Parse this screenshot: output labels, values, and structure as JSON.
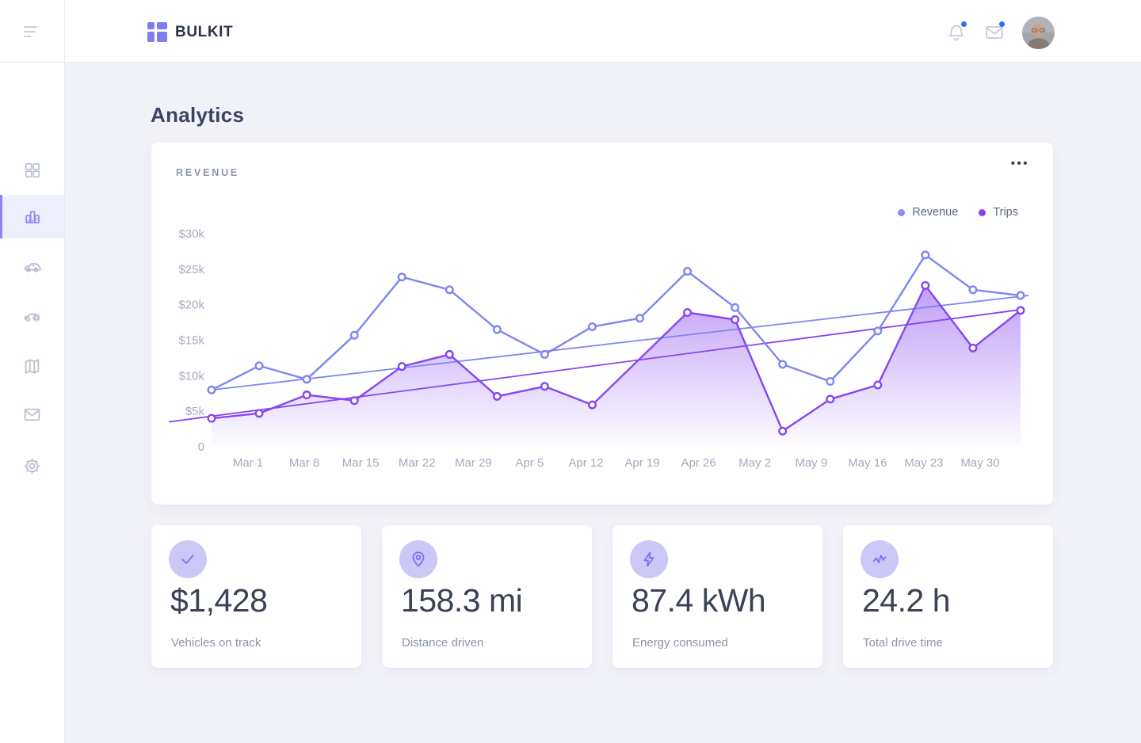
{
  "colors": {
    "accent": "#7d7cf1",
    "sidebar_active_bar": "#8b85f2",
    "revenue_line": "#7e87f0",
    "trips_line": "#8746f2",
    "trips_area_fill": "#8746f2",
    "notification_dot": "#2f6bf6",
    "badge_bg": "#cbc7f7",
    "badge_icon": "#7b74ee"
  },
  "header": {
    "brand": "BULKIT",
    "bell_icon": "bell-icon",
    "bell_has_badge": true,
    "mail_icon": "mail-icon",
    "mail_has_badge": true,
    "avatar": "user-avatar-photo"
  },
  "sidebar": {
    "items": [
      {
        "icon": "dashboard-grid-icon",
        "active": false
      },
      {
        "icon": "bar-chart-icon",
        "active": true
      },
      {
        "icon": "car-icon",
        "active": false
      },
      {
        "icon": "car-service-icon",
        "active": false
      },
      {
        "icon": "map-icon",
        "active": false
      },
      {
        "icon": "mail-icon",
        "active": false
      },
      {
        "icon": "settings-gear-icon",
        "active": false
      }
    ]
  },
  "page": {
    "title": "Analytics"
  },
  "revenue_card": {
    "title": "REVENUE",
    "menu_label": "•••"
  },
  "chart_data": {
    "type": "line",
    "title": "REVENUE",
    "grid": "off",
    "legend_position": "top-right",
    "legend": [
      {
        "label": "Revenue",
        "dot_color": "#8a8ff0"
      },
      {
        "label": "Trips",
        "dot_color": "#8e3ef2"
      }
    ],
    "y_ticks": [
      {
        "label": "$30k",
        "value": 30
      },
      {
        "label": "$25k",
        "value": 25
      },
      {
        "label": "$20k",
        "value": 20
      },
      {
        "label": "$15k",
        "value": 15
      },
      {
        "label": "$10k",
        "value": 10
      },
      {
        "label": "$5k",
        "value": 5
      },
      {
        "label": "0",
        "value": 0
      }
    ],
    "ylim": [
      0,
      30
    ],
    "y_unit": "$k",
    "x_labels": [
      "Mar 1",
      "Mar 8",
      "Mar 15",
      "Mar 22",
      "Mar 29",
      "Apr 5",
      "Apr 12",
      "Apr 19",
      "Apr 26",
      "May 2",
      "May 9",
      "May 16",
      "May 23",
      "May 30"
    ],
    "series": [
      {
        "name": "Revenue",
        "color": "#7e87f0",
        "marker": "hollow-circle",
        "area_fill": false,
        "values": [
          8,
          11.4,
          9.5,
          15.7,
          23.9,
          22.1,
          16.5,
          13,
          16.9,
          18.1,
          24.7,
          19.6,
          11.6,
          9.2,
          16.3,
          27,
          22.1,
          21.3
        ]
      },
      {
        "name": "Trips",
        "color": "#8746f2",
        "marker": "hollow-circle",
        "area_fill": true,
        "values": [
          4,
          4.7,
          7.3,
          6.5,
          11.3,
          13,
          7.1,
          8.5,
          5.9,
          null,
          18.9,
          17.9,
          2.2,
          6.7,
          8.7,
          22.7,
          13.9,
          19.2
        ]
      }
    ],
    "trendlines": [
      {
        "series": "Revenue",
        "color": "#7e87f0",
        "start_value": 8.0,
        "end_value": 21.3
      },
      {
        "series": "Trips",
        "color": "#8746f2",
        "start_value": 3.5,
        "end_value": 19.3
      }
    ]
  },
  "stats": [
    {
      "icon": "check-icon",
      "value": "$1,428",
      "label": "Vehicles on track"
    },
    {
      "icon": "map-pin-icon",
      "value": "158.3 mi",
      "label": "Distance driven"
    },
    {
      "icon": "lightning-bolt-icon",
      "value": "87.4 kWh",
      "label": "Energy consumed"
    },
    {
      "icon": "activity-icon",
      "value": "24.2 h",
      "label": "Total drive time"
    }
  ]
}
